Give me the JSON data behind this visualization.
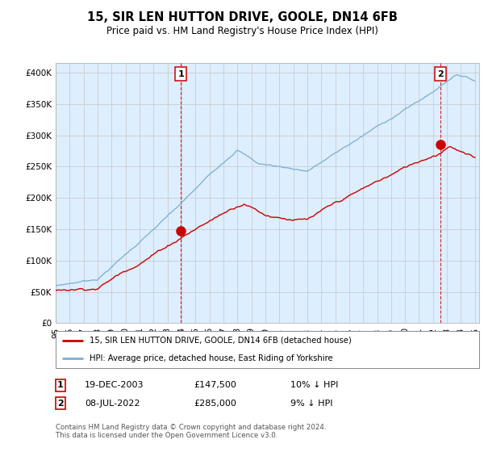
{
  "title": "15, SIR LEN HUTTON DRIVE, GOOLE, DN14 6FB",
  "subtitle": "Price paid vs. HM Land Registry's House Price Index (HPI)",
  "ylabel_ticks": [
    "£0",
    "£50K",
    "£100K",
    "£150K",
    "£200K",
    "£250K",
    "£300K",
    "£350K",
    "£400K"
  ],
  "ytick_values": [
    0,
    50000,
    100000,
    150000,
    200000,
    250000,
    300000,
    350000,
    400000
  ],
  "ylim": [
    0,
    415000
  ],
  "xlim_start": 1995.0,
  "xlim_end": 2025.3,
  "marker1_x": 2003.97,
  "marker1_y": 147500,
  "marker1_label": "1",
  "marker2_x": 2022.52,
  "marker2_y": 285000,
  "marker2_label": "2",
  "legend_line1": "15, SIR LEN HUTTON DRIVE, GOOLE, DN14 6FB (detached house)",
  "legend_line2": "HPI: Average price, detached house, East Riding of Yorkshire",
  "table_row1": [
    "1",
    "19-DEC-2003",
    "£147,500",
    "10% ↓ HPI"
  ],
  "table_row2": [
    "2",
    "08-JUL-2022",
    "£285,000",
    "9% ↓ HPI"
  ],
  "footnote": "Contains HM Land Registry data © Crown copyright and database right 2024.\nThis data is licensed under the Open Government Licence v3.0.",
  "hpi_color": "#7aadd4",
  "price_color": "#cc0000",
  "marker_color": "#cc0000",
  "vline_color": "#cc0000",
  "grid_color": "#cccccc",
  "chart_bg": "#ddeeff",
  "background_color": "#ffffff"
}
